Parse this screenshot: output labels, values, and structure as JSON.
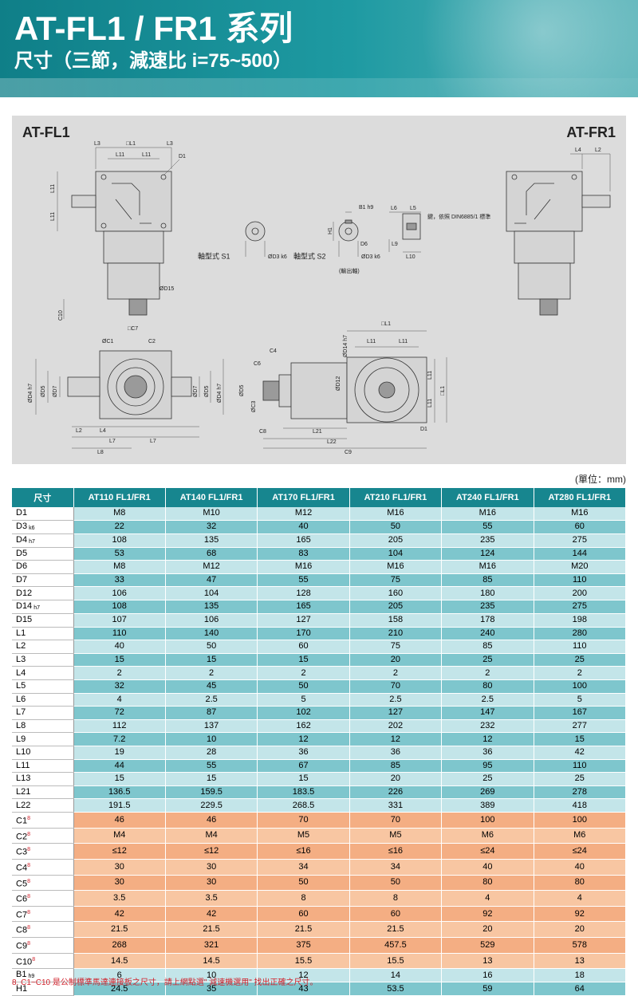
{
  "header": {
    "title": "AT-FL1 / FR1 系列",
    "subtitle": "尺寸（三節，減速比 i=75~500）"
  },
  "drawing": {
    "labels": [
      "AT-FL1",
      "AT-FR1",
      "L3",
      "□L1",
      "L3",
      "L11",
      "L11",
      "D1",
      "L11",
      "L11",
      "ØD15",
      "C10",
      "軸型式 S1",
      "ØD3 k6",
      "軸型式 S2",
      "ØD3 k6",
      "(輸出軸)",
      "B1 h9",
      "H1",
      "D6",
      "L6",
      "L5",
      "L9",
      "L10",
      "鍵，依照 DIN6885/1 標準",
      "L4",
      "L2",
      "□C7",
      "ØC1",
      "C2",
      "ØD4 h7",
      "ØD5",
      "ØD7",
      "ØD7",
      "ØD5",
      "ØD4 h7",
      "L2",
      "L4",
      "L7",
      "L7",
      "L8",
      "C4",
      "C6",
      "ØD5",
      "ØC3",
      "C8",
      "L21",
      "L22",
      "C9",
      "ØD14 h7",
      "ØD12",
      "□L1",
      "L11",
      "L11",
      "L11",
      "L11",
      "□L1",
      "D1"
    ]
  },
  "unit": "(單位：mm)",
  "table": {
    "header": [
      "尺寸",
      "AT110 FL1/FR1",
      "AT140 FL1/FR1",
      "AT170 FL1/FR1",
      "AT210 FL1/FR1",
      "AT240 FL1/FR1",
      "AT280 FL1/FR1"
    ],
    "rows": [
      {
        "label": "D1",
        "values": [
          "M8",
          "M10",
          "M12",
          "M16",
          "M16",
          "M16"
        ]
      },
      {
        "label": "D3",
        "tolerance": "k6",
        "values": [
          "22",
          "32",
          "40",
          "50",
          "55",
          "60"
        ]
      },
      {
        "label": "D4",
        "tolerance": "h7",
        "values": [
          "108",
          "135",
          "165",
          "205",
          "235",
          "275"
        ]
      },
      {
        "label": "D5",
        "values": [
          "53",
          "68",
          "83",
          "104",
          "124",
          "144"
        ]
      },
      {
        "label": "D6",
        "values": [
          "M8",
          "M12",
          "M16",
          "M16",
          "M16",
          "M20"
        ]
      },
      {
        "label": "D7",
        "values": [
          "33",
          "47",
          "55",
          "75",
          "85",
          "110"
        ]
      },
      {
        "label": "D12",
        "values": [
          "106",
          "104",
          "128",
          "160",
          "180",
          "200"
        ]
      },
      {
        "label": "D14",
        "tolerance": "h7",
        "values": [
          "108",
          "135",
          "165",
          "205",
          "235",
          "275"
        ]
      },
      {
        "label": "D15",
        "values": [
          "107",
          "106",
          "127",
          "158",
          "178",
          "198"
        ]
      },
      {
        "label": "L1",
        "values": [
          "110",
          "140",
          "170",
          "210",
          "240",
          "280"
        ]
      },
      {
        "label": "L2",
        "values": [
          "40",
          "50",
          "60",
          "75",
          "85",
          "110"
        ]
      },
      {
        "label": "L3",
        "values": [
          "15",
          "15",
          "15",
          "20",
          "25",
          "25"
        ]
      },
      {
        "label": "L4",
        "values": [
          "2",
          "2",
          "2",
          "2",
          "2",
          "2"
        ]
      },
      {
        "label": "L5",
        "values": [
          "32",
          "45",
          "50",
          "70",
          "80",
          "100"
        ]
      },
      {
        "label": "L6",
        "values": [
          "4",
          "2.5",
          "5",
          "2.5",
          "2.5",
          "5"
        ]
      },
      {
        "label": "L7",
        "values": [
          "72",
          "87",
          "102",
          "127",
          "147",
          "167"
        ]
      },
      {
        "label": "L8",
        "values": [
          "112",
          "137",
          "162",
          "202",
          "232",
          "277"
        ]
      },
      {
        "label": "L9",
        "values": [
          "7.2",
          "10",
          "12",
          "12",
          "12",
          "15"
        ]
      },
      {
        "label": "L10",
        "values": [
          "19",
          "28",
          "36",
          "36",
          "36",
          "42"
        ]
      },
      {
        "label": "L11",
        "values": [
          "44",
          "55",
          "67",
          "85",
          "95",
          "110"
        ]
      },
      {
        "label": "L13",
        "values": [
          "15",
          "15",
          "15",
          "20",
          "25",
          "25"
        ]
      },
      {
        "label": "L21",
        "values": [
          "136.5",
          "159.5",
          "183.5",
          "226",
          "269",
          "278"
        ]
      },
      {
        "label": "L22",
        "values": [
          "191.5",
          "229.5",
          "268.5",
          "331",
          "389",
          "418"
        ]
      },
      {
        "label": "C1",
        "footnote": "8",
        "values": [
          "46",
          "46",
          "70",
          "70",
          "100",
          "100"
        ]
      },
      {
        "label": "C2",
        "footnote": "8",
        "values": [
          "M4",
          "M4",
          "M5",
          "M5",
          "M6",
          "M6"
        ]
      },
      {
        "label": "C3",
        "footnote": "8",
        "values": [
          "≤12",
          "≤12",
          "≤16",
          "≤16",
          "≤24",
          "≤24"
        ]
      },
      {
        "label": "C4",
        "footnote": "8",
        "values": [
          "30",
          "30",
          "34",
          "34",
          "40",
          "40"
        ]
      },
      {
        "label": "C5",
        "footnote": "8",
        "values": [
          "30",
          "30",
          "50",
          "50",
          "80",
          "80"
        ]
      },
      {
        "label": "C6",
        "footnote": "8",
        "values": [
          "3.5",
          "3.5",
          "8",
          "8",
          "4",
          "4"
        ]
      },
      {
        "label": "C7",
        "footnote": "8",
        "values": [
          "42",
          "42",
          "60",
          "60",
          "92",
          "92"
        ]
      },
      {
        "label": "C8",
        "footnote": "8",
        "values": [
          "21.5",
          "21.5",
          "21.5",
          "21.5",
          "20",
          "20"
        ]
      },
      {
        "label": "C9",
        "footnote": "8",
        "values": [
          "268",
          "321",
          "375",
          "457.5",
          "529",
          "578"
        ]
      },
      {
        "label": "C10",
        "footnote": "8",
        "values": [
          "14.5",
          "14.5",
          "15.5",
          "15.5",
          "13",
          "13"
        ]
      },
      {
        "label": "B1",
        "tolerance": "h9",
        "values": [
          "6",
          "10",
          "12",
          "14",
          "16",
          "18"
        ]
      },
      {
        "label": "H1",
        "values": [
          "24.5",
          "35",
          "43",
          "53.5",
          "59",
          "64"
        ]
      }
    ]
  },
  "footnote": "8. C1~C10 是公制標準馬達連接板之尺寸，請上網點選\" 減速機選用\" 找出正確之尺寸。"
}
